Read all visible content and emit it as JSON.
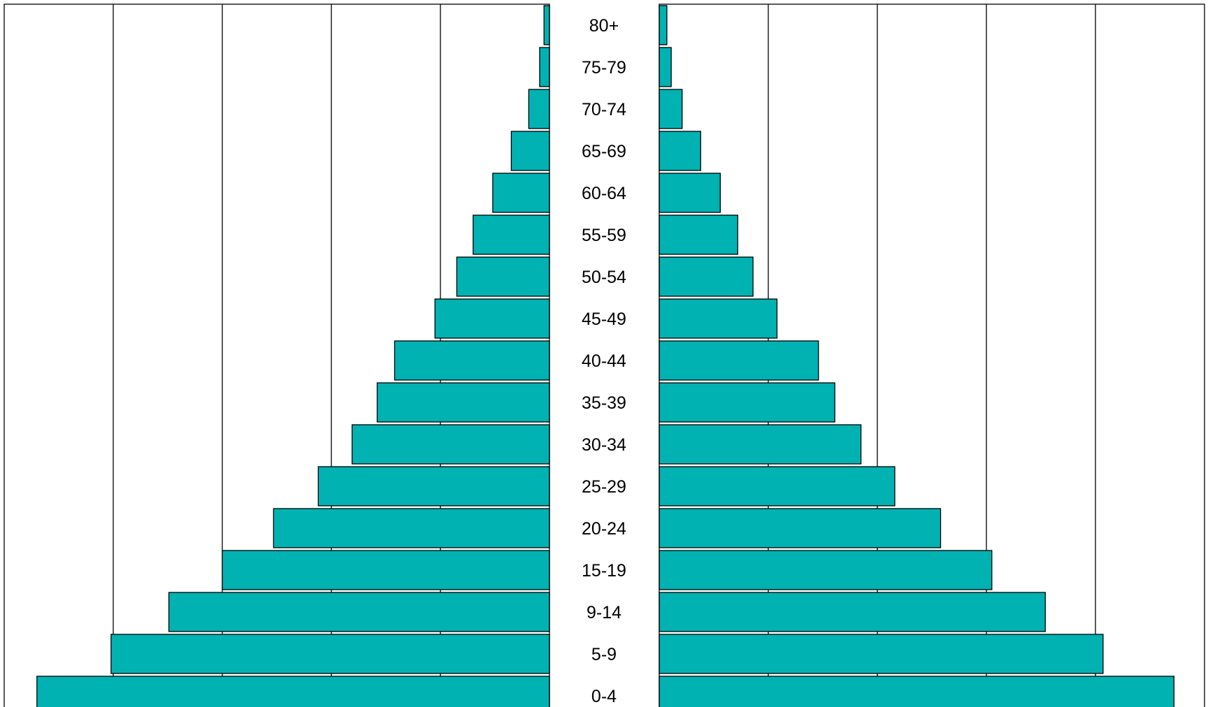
{
  "chart_data": {
    "type": "bar",
    "orientation": "horizontal",
    "layout": "population-pyramid",
    "title": "",
    "xlabel": "",
    "ylabel": "",
    "categories": [
      "80+",
      "75-79",
      "70-74",
      "65-69",
      "60-64",
      "55-59",
      "50-54",
      "45-49",
      "40-44",
      "35-39",
      "30-34",
      "25-29",
      "20-24",
      "15-19",
      "9-14",
      "5-9",
      "0-4"
    ],
    "series": [
      {
        "side": "left",
        "values": [
          0.25,
          0.45,
          0.95,
          1.75,
          2.6,
          3.5,
          4.25,
          5.25,
          7.1,
          7.9,
          9.05,
          10.6,
          12.65,
          15.0,
          17.45,
          20.1,
          23.5
        ]
      },
      {
        "side": "right",
        "values": [
          0.35,
          0.55,
          1.05,
          1.9,
          2.8,
          3.6,
          4.3,
          5.4,
          7.3,
          8.05,
          9.25,
          10.8,
          12.9,
          15.25,
          17.7,
          20.35,
          23.6
        ]
      }
    ],
    "xlim": [
      0,
      25
    ],
    "grid": true,
    "legend": "none",
    "bar_color": "#00B2B2",
    "line_color": "#000000"
  }
}
